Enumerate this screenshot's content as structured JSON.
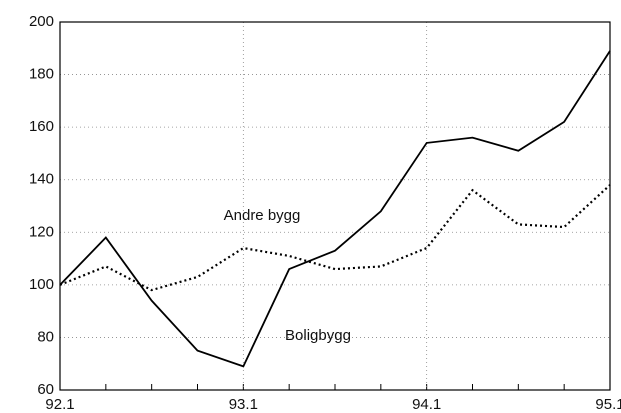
{
  "chart_data": {
    "type": "line",
    "categories": [
      "92.1",
      null,
      null,
      null,
      "93.1",
      null,
      null,
      null,
      "94.1",
      null,
      null,
      null,
      "95.1"
    ],
    "series": [
      {
        "name": "Boligbygg",
        "color": "#000000",
        "dash": "solid",
        "values": [
          100,
          118,
          94,
          75,
          69,
          106,
          113,
          128,
          154,
          156,
          151,
          162,
          189
        ]
      },
      {
        "name": "Andre bygg",
        "color": "#000000",
        "dash": "dotted",
        "values": [
          100,
          107,
          98,
          103,
          114,
          111,
          106,
          107,
          114,
          136,
          123,
          122,
          138
        ]
      }
    ],
    "ylim": [
      60,
      200
    ],
    "yticks": [
      60,
      80,
      100,
      120,
      140,
      160,
      180,
      200
    ],
    "grid": true
  }
}
